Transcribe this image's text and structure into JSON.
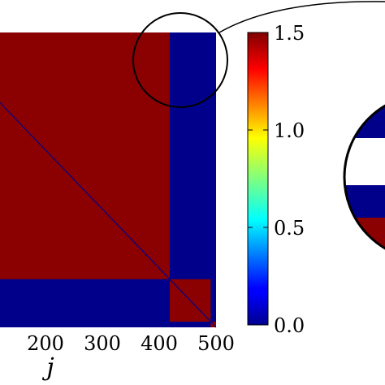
{
  "chart_data": {
    "type": "heatmap",
    "title": "",
    "xlabel": "j",
    "ylabel": "",
    "x_ticks": [
      "200",
      "300",
      "400",
      "500"
    ],
    "x_tick_values": [
      200,
      300,
      400,
      500
    ],
    "xlim": [
      120,
      500
    ],
    "ylim": [
      1,
      500
    ],
    "colorscale": "jet",
    "colorbar": {
      "min": 0.0,
      "max": 1.5,
      "ticks": [
        "0.0",
        "0.5",
        "1.0",
        "1.5"
      ],
      "tick_values": [
        0.0,
        0.5,
        1.0,
        1.5
      ]
    },
    "blocks": [
      {
        "i_range": [
          1,
          500
        ],
        "j_range": [
          1,
          500
        ],
        "value": 0.0
      },
      {
        "i_range": [
          1,
          418
        ],
        "j_range": [
          1,
          418
        ],
        "value": 1.5
      },
      {
        "i_range": [
          419,
          490
        ],
        "j_range": [
          419,
          490
        ],
        "value": 1.5
      },
      {
        "i_range": [
          491,
          500
        ],
        "j_range": [
          491,
          500
        ],
        "value": 1.5
      }
    ],
    "diagonal_value": 0.0,
    "inset": {
      "type": "heatmap-zoom",
      "colors_visible_top_to_bottom": [
        "#00008b",
        "#ffffff",
        "#00008b",
        "#8b0000"
      ]
    },
    "colors": {
      "low": "#00008b",
      "high": "#8b0000"
    }
  }
}
